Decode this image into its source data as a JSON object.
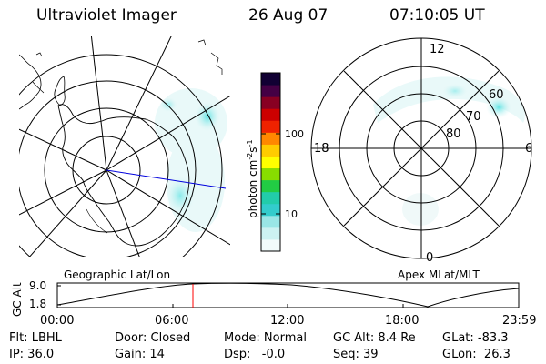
{
  "header": {
    "title": "Ultraviolet Imager",
    "date": "26 Aug 07",
    "time": "07:10:05 UT"
  },
  "left_panel": {
    "label": "Geographic Lat/Lon"
  },
  "right_panel": {
    "label": "Apex MLat/MLT",
    "mlt_labels": {
      "top": "12",
      "bottom": "0",
      "left": "18",
      "right": "6"
    },
    "lat_labels": [
      "60",
      "70",
      "80"
    ]
  },
  "colorbar": {
    "unit_label": "photon cm",
    "unit_exp1": "-2",
    "unit_mid": "s",
    "unit_exp2": "-1",
    "tick_100": "100",
    "tick_10": "10",
    "colors": [
      "#f2fbfb",
      "#ccf2f2",
      "#99e6e6",
      "#33cccc",
      "#22ccaa",
      "#22cc44",
      "#88dd00",
      "#ffff00",
      "#ffcc00",
      "#ff8800",
      "#ee2200",
      "#cc0000",
      "#880022",
      "#440044",
      "#110033"
    ]
  },
  "altitude_plot": {
    "ylabel": "GC Alt",
    "yticks": [
      "9.0",
      "1.8"
    ],
    "xticks": [
      "00:00",
      "06:00",
      "12:00",
      "18:00",
      "23:59"
    ],
    "marker_color": "#ff0000"
  },
  "status": {
    "row1": {
      "flt": "Flt: LBHL",
      "door": "Door: Closed",
      "mode": "Mode: Normal",
      "gcalt": "GC Alt: 8.4 Re",
      "glat": "GLat: -83.3"
    },
    "row2": {
      "ip": "IP: 36.0",
      "gain": "Gain: 14",
      "dsp": "Dsp:   -0.0",
      "seq": "Seq: 39",
      "glon": "GLon:  26.3"
    }
  }
}
